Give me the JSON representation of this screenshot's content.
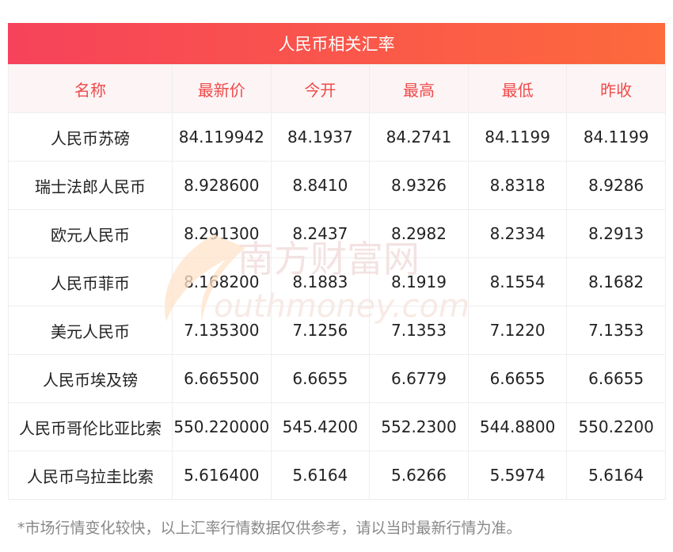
{
  "title": "人民币相关汇率",
  "columns": [
    "名称",
    "最新价",
    "今开",
    "最高",
    "最低",
    "昨收"
  ],
  "rows": [
    [
      "人民币苏磅",
      "84.119942",
      "84.1937",
      "84.2741",
      "84.1199",
      "84.1199"
    ],
    [
      "瑞士法郎人民币",
      "8.928600",
      "8.8410",
      "8.9326",
      "8.8318",
      "8.9286"
    ],
    [
      "欧元人民币",
      "8.291300",
      "8.2437",
      "8.2982",
      "8.2334",
      "8.2913"
    ],
    [
      "人民币菲币",
      "8.168200",
      "8.1883",
      "8.1919",
      "8.1554",
      "8.1682"
    ],
    [
      "美元人民币",
      "7.135300",
      "7.1256",
      "7.1353",
      "7.1220",
      "7.1353"
    ],
    [
      "人民币埃及镑",
      "6.665500",
      "6.6655",
      "6.6779",
      "6.6655",
      "6.6655"
    ],
    [
      "人民币哥伦比亚比索",
      "550.220000",
      "545.4200",
      "552.2300",
      "544.8800",
      "550.2200"
    ],
    [
      "人民币乌拉圭比索",
      "5.616400",
      "5.6164",
      "5.6266",
      "5.5974",
      "5.6164"
    ]
  ],
  "watermark": {
    "cn": "南方财富网",
    "en": "outhmoney.com"
  },
  "note": "*市场行情变化较快，以上汇率行情数据仅供参考，请以当时最新行情为准。",
  "colors": {
    "title_gradient_start": "#f6425a",
    "title_gradient_end": "#fd6a3c",
    "header_text": "#f04a4a",
    "header_bg": "#fdf4f5"
  }
}
